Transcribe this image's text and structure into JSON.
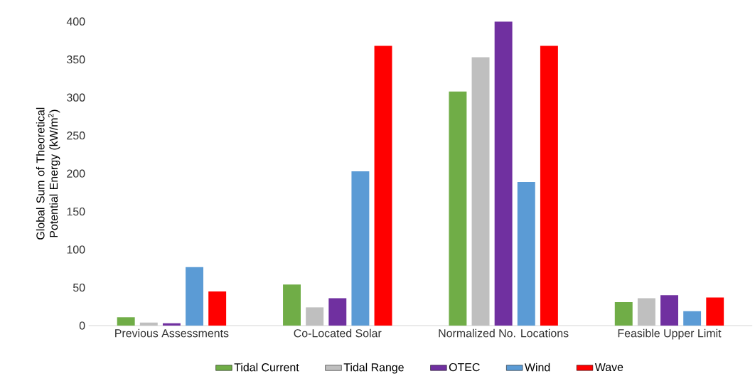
{
  "chart_data": {
    "type": "bar",
    "ylabel": "Global Sum of Theoretical Potential Energy (kW/m$^{2}$)",
    "categories": [
      "Previous Assessments",
      "Co-Located Solar",
      "Normalized No. Locations",
      "Feasible Upper Limit"
    ],
    "series": [
      {
        "name": "Tidal Current",
        "color": "#70ad47",
        "values": [
          11,
          54,
          308,
          31
        ]
      },
      {
        "name": "Tidal Range",
        "color": "#bfbfbf",
        "values": [
          4,
          24,
          353,
          36
        ]
      },
      {
        "name": "OTEC",
        "color": "#7030a0",
        "values": [
          3,
          36,
          400,
          40
        ]
      },
      {
        "name": "Wind",
        "color": "#5b9bd5",
        "values": [
          77,
          203,
          189,
          19
        ]
      },
      {
        "name": "Wave",
        "color": "#ff0000",
        "values": [
          45,
          368,
          368,
          37
        ]
      }
    ],
    "ylim": [
      0,
      400
    ],
    "yticks": [
      0,
      50,
      100,
      150,
      200,
      250,
      300,
      350,
      400
    ],
    "legend": "bottom"
  }
}
